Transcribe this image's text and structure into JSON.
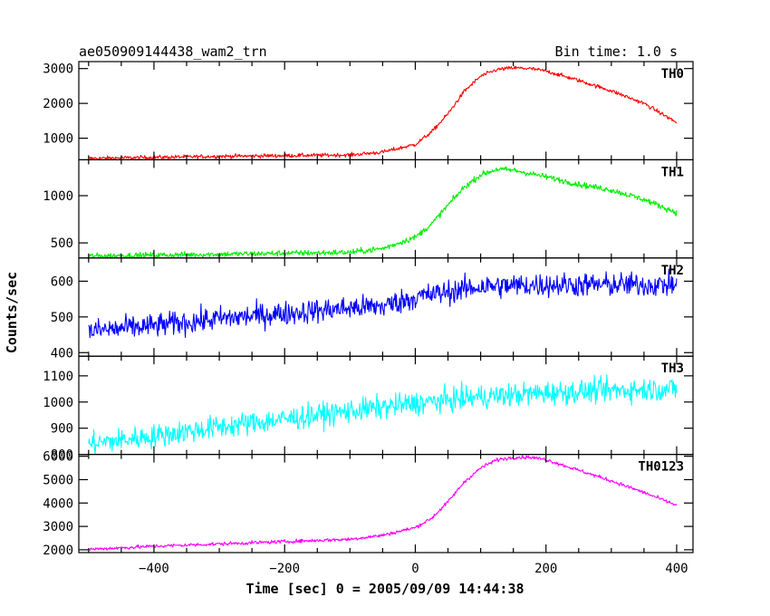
{
  "header": {
    "title": "ae050909144438_wam2_trn",
    "bin_time": "Bin time: 1.0 s"
  },
  "chart_data": {
    "type": "line",
    "xlabel": "Time [sec] 0 = 2005/09/09 14:44:38",
    "ylabel": "Counts/sec",
    "xlim": [
      -515,
      425
    ],
    "xticks": [
      -400,
      -200,
      0,
      200,
      400
    ],
    "xtick_labels": [
      "−400",
      "−200",
      "0",
      "200",
      "400"
    ],
    "grid": false,
    "panels": [
      {
        "name": "TH0",
        "color": "#ff0000",
        "ylim": [
          380,
          3200
        ],
        "yticks": [
          1000,
          2000,
          3000
        ],
        "noise": 40,
        "x": [
          -500,
          -400,
          -300,
          -200,
          -100,
          -50,
          0,
          25,
          50,
          75,
          100,
          125,
          150,
          175,
          200,
          250,
          300,
          350,
          400
        ],
        "y": [
          420,
          450,
          480,
          500,
          520,
          600,
          820,
          1180,
          1700,
          2350,
          2780,
          2970,
          3020,
          3000,
          2930,
          2660,
          2360,
          2000,
          1450
        ]
      },
      {
        "name": "TH1",
        "color": "#00ee00",
        "ylim": [
          340,
          1380
        ],
        "yticks": [
          500,
          1000
        ],
        "noise": 22,
        "x": [
          -500,
          -400,
          -300,
          -200,
          -100,
          -50,
          0,
          25,
          50,
          75,
          100,
          125,
          150,
          200,
          250,
          300,
          350,
          400
        ],
        "y": [
          360,
          370,
          380,
          390,
          400,
          440,
          560,
          700,
          900,
          1090,
          1220,
          1280,
          1270,
          1200,
          1120,
          1060,
          960,
          820
        ]
      },
      {
        "name": "TH2",
        "color": "#0000ff",
        "ylim": [
          390,
          665
        ],
        "yticks": [
          400,
          500,
          600
        ],
        "noise": 24,
        "x": [
          -500,
          -400,
          -300,
          -200,
          -100,
          -50,
          0,
          100,
          200,
          300,
          400
        ],
        "y": [
          460,
          475,
          495,
          510,
          525,
          530,
          555,
          585,
          590,
          590,
          590
        ]
      },
      {
        "name": "TH3",
        "color": "#00ffff",
        "ylim": [
          800,
          1175
        ],
        "yticks": [
          800,
          900,
          1000,
          1100
        ],
        "noise": 32,
        "x": [
          -500,
          -400,
          -300,
          -200,
          -100,
          0,
          100,
          200,
          300,
          400
        ],
        "y": [
          840,
          870,
          905,
          935,
          965,
          995,
          1020,
          1035,
          1045,
          1050
        ]
      },
      {
        "name": "TH0123",
        "color": "#ff00ff",
        "ylim": [
          1880,
          6080
        ],
        "yticks": [
          2000,
          3000,
          4000,
          5000,
          6000
        ],
        "noise": 55,
        "x": [
          -500,
          -400,
          -300,
          -200,
          -100,
          -50,
          0,
          25,
          50,
          75,
          100,
          125,
          150,
          175,
          200,
          250,
          300,
          350,
          400
        ],
        "y": [
          2020,
          2150,
          2250,
          2350,
          2450,
          2620,
          2950,
          3350,
          4050,
          4900,
          5500,
          5850,
          5950,
          5960,
          5860,
          5400,
          4950,
          4450,
          3900
        ]
      }
    ]
  }
}
